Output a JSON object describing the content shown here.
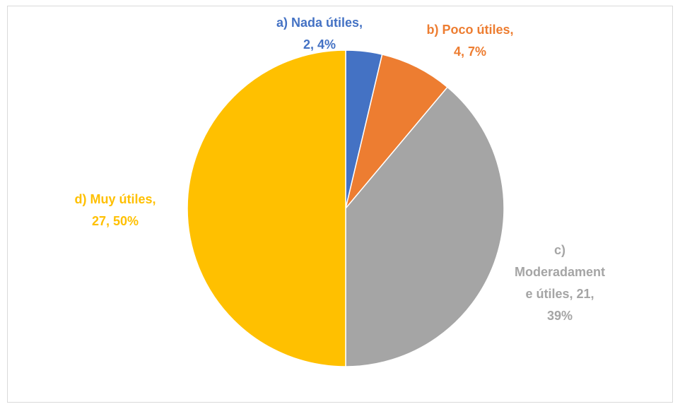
{
  "chart_data": {
    "type": "pie",
    "values": [
      2,
      4,
      21,
      27
    ],
    "value_labels": [
      [
        "a) Nada útiles,",
        "2, 4%"
      ],
      [
        "b) Poco útiles,",
        "4, 7%"
      ],
      [
        "c)",
        "Moderadament",
        "e útiles, 21,",
        "39%"
      ],
      [
        "d) Muy útiles,",
        "27, 50%"
      ]
    ],
    "colors": [
      "#4472c4",
      "#ed7d31",
      "#a5a5a5",
      "#ffc000"
    ]
  }
}
